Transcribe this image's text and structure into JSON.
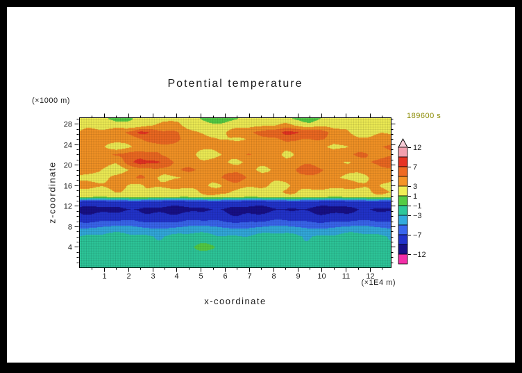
{
  "header": {
    "title": "Potential temperature",
    "timestamp": "189600 s",
    "timestamp_color": "#8a8a00"
  },
  "axes": {
    "x": {
      "title": "x-coordinate",
      "unit": "(×1E4 m)"
    },
    "y": {
      "title": "z-coordinate",
      "unit": "(×1000 m)"
    }
  },
  "chart_data": {
    "type": "heatmap",
    "title": "Potential temperature",
    "xlabel": "x-coordinate",
    "ylabel": "z-coordinate",
    "x_unit": "(×1E4 m)",
    "y_unit": "(×1000 m)",
    "time_label": "189600 s",
    "xlim": [
      0,
      12.86
    ],
    "ylim": [
      0,
      29.1
    ],
    "x_ticks": [
      1,
      2,
      3,
      4,
      5,
      6,
      7,
      8,
      9,
      10,
      11,
      12
    ],
    "x_minor_step": 0.5,
    "y_ticks": [
      4,
      8,
      12,
      16,
      20,
      24,
      28
    ],
    "y_minor_step": 1,
    "grid_on": true,
    "legend_position": "right-colorbar",
    "contour_levels": [
      -12,
      -10,
      -7,
      -5,
      -3,
      -1,
      1,
      3,
      5,
      7,
      10,
      12
    ],
    "band_colors": [
      "#181088",
      "#2233cc",
      "#3a66ee",
      "#33aadd",
      "#2ec89b",
      "#55cc44",
      "#f0ee55",
      "#f59426",
      "#ef6a22",
      "#e63323",
      "#f2a0ae"
    ],
    "below_color": "#f32fa8",
    "above_color": "#f7ccd6",
    "colorbar_labels": [
      12,
      7,
      3,
      1,
      -1,
      -3,
      -7,
      -12
    ],
    "x_centers": [
      0.5,
      1.5,
      2.5,
      3.5,
      4.5,
      5.5,
      6.5,
      7.5,
      8.5,
      9.5,
      10.5,
      11.5,
      12.5
    ],
    "z_centers": [
      29,
      27.7,
      26.3,
      25,
      23.5,
      22,
      20.5,
      19,
      17.5,
      16,
      14.7,
      13.8,
      12.8,
      11.3,
      10,
      8.5,
      7.2,
      6,
      4,
      1.5
    ],
    "values": [
      [
        2,
        0,
        2,
        2,
        2,
        0,
        1,
        2,
        2,
        0,
        2,
        2,
        2
      ],
      [
        2,
        2,
        2,
        4,
        2,
        2,
        2,
        2,
        4,
        2,
        2,
        2,
        2
      ],
      [
        3,
        4,
        8,
        5,
        4,
        2,
        4,
        5,
        8,
        7,
        4,
        2,
        3
      ],
      [
        4,
        4,
        5,
        6,
        4,
        4,
        2,
        4,
        6,
        5,
        4,
        4,
        4
      ],
      [
        4,
        2,
        4,
        4,
        4,
        4,
        4,
        4,
        4,
        4,
        2,
        4,
        5
      ],
      [
        3,
        6,
        6,
        4,
        4,
        2,
        4,
        5,
        3,
        4,
        4,
        6,
        4
      ],
      [
        4,
        4,
        8,
        6,
        4,
        4,
        2,
        4,
        4,
        4,
        3,
        4,
        6
      ],
      [
        4,
        2,
        4,
        4,
        6,
        4,
        4,
        3,
        4,
        6,
        4,
        4,
        4
      ],
      [
        2,
        4,
        5,
        2,
        4,
        4,
        6,
        4,
        4,
        4,
        4,
        2,
        4
      ],
      [
        4,
        4,
        2,
        4,
        5,
        2,
        4,
        4,
        2,
        4,
        5,
        4,
        2
      ],
      [
        2,
        3,
        2,
        2,
        2,
        4,
        2,
        2,
        3,
        2,
        2,
        2,
        3
      ],
      [
        2,
        2,
        2,
        2,
        2,
        2,
        2,
        2,
        2,
        2,
        2,
        2,
        2
      ],
      [
        -8,
        -8,
        -8,
        -8,
        -8,
        -8,
        -8,
        -8,
        -8,
        -8,
        -8,
        -8,
        -8
      ],
      [
        -10.5,
        -11,
        -10.5,
        -10.5,
        -11,
        -10.5,
        -10.5,
        -11,
        -10.5,
        -10.5,
        -11,
        -10.5,
        -10.5
      ],
      [
        -9,
        -9,
        -9.5,
        -9,
        -9,
        -9,
        -9.5,
        -9,
        -9,
        -9,
        -9,
        -9.5,
        -9
      ],
      [
        -6,
        -6,
        -6,
        -6,
        -6,
        -6,
        -6,
        -6,
        -6,
        -6,
        -6,
        -6,
        -6
      ],
      [
        -4,
        -4,
        -4,
        -4,
        -4,
        -4,
        -4,
        -4,
        -4,
        -4,
        -4,
        -4,
        -4
      ],
      [
        -2.5,
        -2.5,
        -2.5,
        -2.5,
        -2.5,
        -2.5,
        -2.5,
        -2.5,
        -2.5,
        -2.5,
        -2.5,
        -2.5,
        -2.5
      ],
      [
        -2,
        -2,
        -2,
        -2,
        -1.5,
        -0.5,
        -1.5,
        -2,
        -2,
        -2,
        -2,
        -2,
        -2
      ],
      [
        -2,
        -2,
        -1.2,
        -2,
        -2,
        -2,
        -2,
        -2,
        -1.2,
        -2,
        -2,
        -2,
        -2
      ]
    ]
  }
}
